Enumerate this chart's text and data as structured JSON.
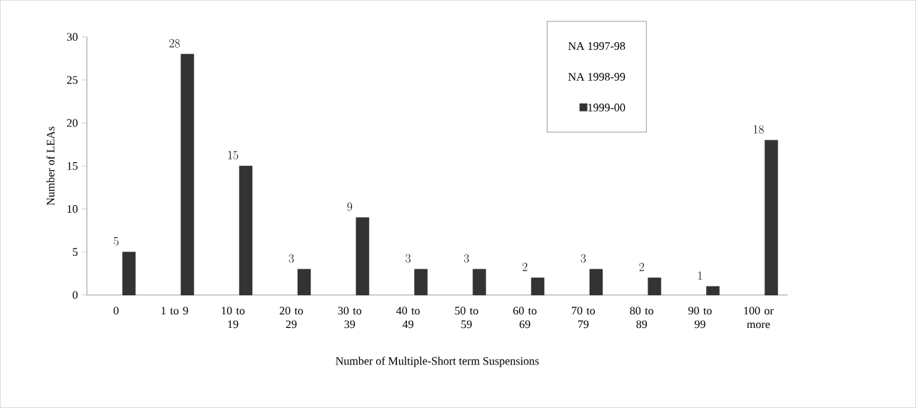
{
  "chart_data": {
    "type": "bar",
    "xlabel": "Number of Multiple-Short term Suspensions",
    "ylabel": "Number of LEAs",
    "categories": [
      "0",
      "1 to 9",
      "10 to 19",
      "20 to 29",
      "30 to 39",
      "40 to 49",
      "50 to 59",
      "60 to 69",
      "70 to 79",
      "80 to 89",
      "90 to 99",
      "100 or more"
    ],
    "series": [
      {
        "name": "NA 1997-98",
        "values": [
          null,
          null,
          null,
          null,
          null,
          null,
          null,
          null,
          null,
          null,
          null,
          null
        ]
      },
      {
        "name": "NA 1998-99",
        "values": [
          null,
          null,
          null,
          null,
          null,
          null,
          null,
          null,
          null,
          null,
          null,
          null
        ]
      },
      {
        "name": "1999-00",
        "color": "#333333",
        "values": [
          5,
          28,
          15,
          3,
          9,
          3,
          3,
          2,
          3,
          2,
          1,
          18
        ]
      }
    ],
    "ylim": [
      0,
      30
    ],
    "yticks": [
      0,
      5,
      10,
      15,
      20,
      25,
      30
    ],
    "data_labels": true,
    "legend": "top right"
  }
}
